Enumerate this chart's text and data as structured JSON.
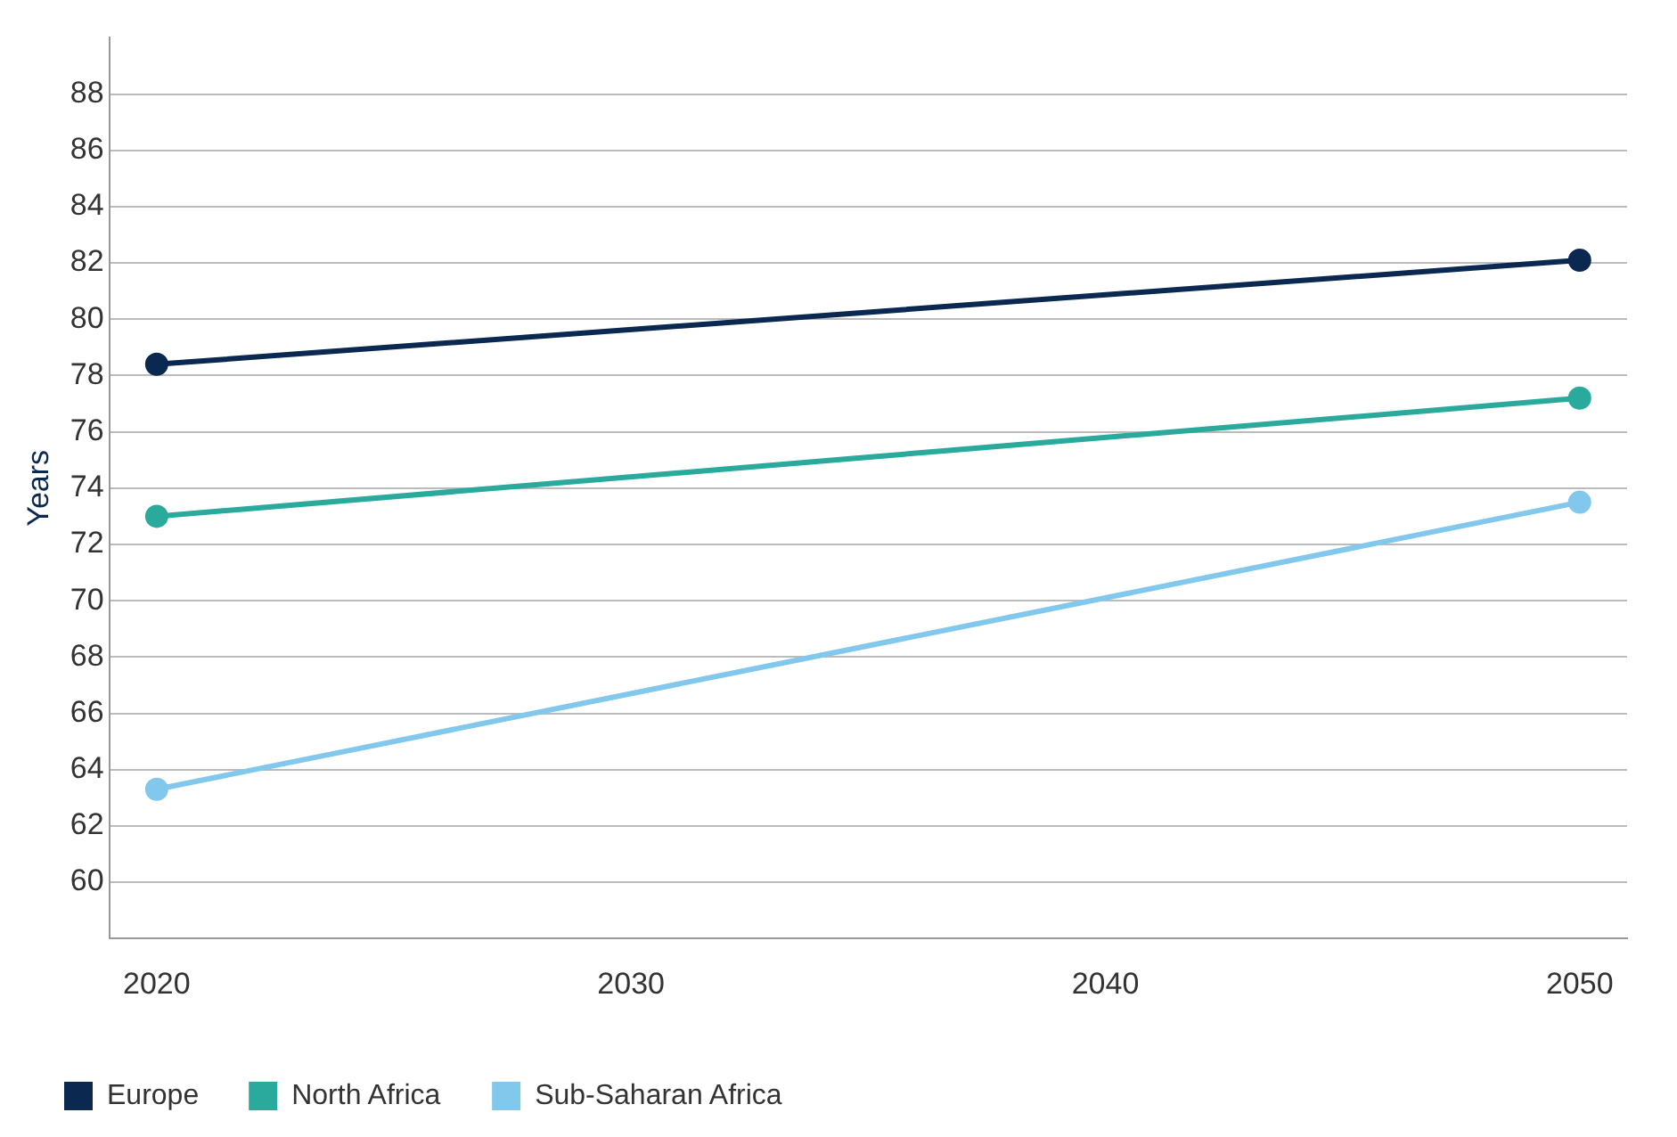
{
  "chart_data": {
    "type": "line",
    "ylabel": "Years",
    "x": [
      2020,
      2050
    ],
    "xlim": [
      2019,
      2051
    ],
    "xticks": [
      2020,
      2030,
      2040,
      2050
    ],
    "ylim": [
      58,
      90
    ],
    "yticks": [
      60,
      62,
      64,
      66,
      68,
      70,
      72,
      74,
      76,
      78,
      80,
      82,
      84,
      86,
      88
    ],
    "grid": "y",
    "legend": "bottom",
    "marker": "circle",
    "line_style": "solid",
    "series": [
      {
        "name": "Europe",
        "color": "#0a2850",
        "values": [
          78.4,
          82.1
        ]
      },
      {
        "name": "North Africa",
        "color": "#2aaa9c",
        "values": [
          73.0,
          77.2
        ]
      },
      {
        "name": "Sub-Saharan Africa",
        "color": "#82c8ec",
        "values": [
          63.3,
          73.5
        ]
      }
    ]
  }
}
